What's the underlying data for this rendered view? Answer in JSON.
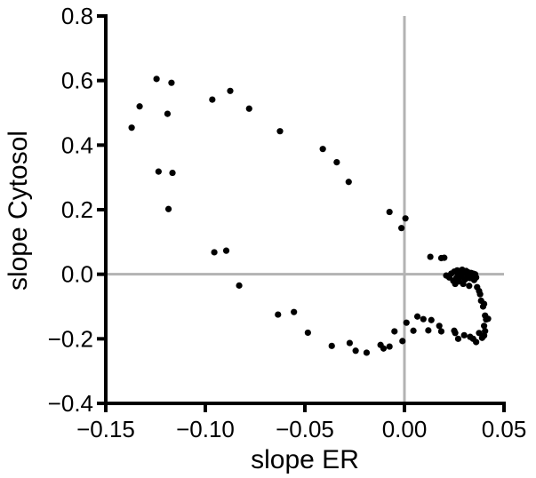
{
  "chart_data": {
    "type": "scatter",
    "title": "",
    "xlabel": "slope ER",
    "ylabel": "slope Cytosol",
    "xlim": [
      -0.15,
      0.05
    ],
    "ylim": [
      -0.4,
      0.8
    ],
    "xticks": [
      "−0.15",
      "−0.10",
      "−0.05",
      "0.00",
      "0.05"
    ],
    "xtick_values": [
      -0.15,
      -0.1,
      -0.05,
      0.0,
      0.05
    ],
    "yticks": [
      "−0.4",
      "−0.2",
      "0.0",
      "0.2",
      "0.4",
      "0.6",
      "0.8"
    ],
    "ytick_values": [
      -0.4,
      -0.2,
      0.0,
      0.2,
      0.4,
      0.6,
      0.8
    ],
    "reference_lines": {
      "x": 0.0,
      "y": 0.0,
      "color": "#b3b3b3"
    },
    "grid": false,
    "point_color": "#000000",
    "series": [
      {
        "points": [
          [
            -0.1245,
            0.605
          ],
          [
            -0.117,
            0.593
          ],
          [
            -0.133,
            0.52
          ],
          [
            -0.119,
            0.497
          ],
          [
            -0.137,
            0.454
          ],
          [
            -0.1235,
            0.318
          ],
          [
            -0.1165,
            0.314
          ],
          [
            -0.1185,
            0.202
          ],
          [
            -0.0965,
            0.541
          ],
          [
            -0.0875,
            0.568
          ],
          [
            -0.078,
            0.513
          ],
          [
            -0.0625,
            0.443
          ],
          [
            -0.041,
            0.388
          ],
          [
            -0.034,
            0.347
          ],
          [
            -0.028,
            0.286
          ],
          [
            -0.0075,
            0.193
          ],
          [
            -0.0015,
            0.143
          ],
          [
            0.0005,
            0.173
          ],
          [
            -0.0955,
            0.068
          ],
          [
            -0.0895,
            0.073
          ],
          [
            -0.083,
            -0.035
          ],
          [
            -0.0635,
            -0.125
          ],
          [
            -0.0555,
            -0.117
          ],
          [
            -0.0485,
            -0.181
          ],
          [
            -0.0365,
            -0.222
          ],
          [
            -0.0275,
            -0.213
          ],
          [
            -0.0245,
            -0.237
          ],
          [
            -0.019,
            -0.243
          ],
          [
            -0.012,
            -0.219
          ],
          [
            -0.0105,
            -0.23
          ],
          [
            -0.0075,
            -0.224
          ],
          [
            -0.005,
            -0.177
          ],
          [
            -0.001,
            -0.207
          ],
          [
            0.001,
            -0.15
          ],
          [
            0.0045,
            -0.175
          ],
          [
            0.0065,
            -0.131
          ],
          [
            0.0095,
            -0.139
          ],
          [
            0.012,
            -0.174
          ],
          [
            0.0135,
            -0.142
          ],
          [
            0.0175,
            -0.16
          ],
          [
            0.0185,
            -0.177
          ],
          [
            0.013,
            0.054
          ],
          [
            0.0185,
            0.05
          ],
          [
            0.02,
            0.051
          ],
          [
            0.021,
            -0.004
          ],
          [
            0.0225,
            -0.01
          ],
          [
            0.0235,
            0.002
          ],
          [
            0.0245,
            -0.02
          ],
          [
            0.025,
            0.008
          ],
          [
            0.0255,
            -0.03
          ],
          [
            0.026,
            -0.012
          ],
          [
            0.0265,
            0.012
          ],
          [
            0.027,
            -0.002
          ],
          [
            0.0275,
            -0.022
          ],
          [
            0.028,
            0.01
          ],
          [
            0.0285,
            -0.008
          ],
          [
            0.029,
            0.014
          ],
          [
            0.0295,
            -0.03
          ],
          [
            0.03,
            0.004
          ],
          [
            0.0305,
            -0.016
          ],
          [
            0.031,
            0.01
          ],
          [
            0.0315,
            -0.004
          ],
          [
            0.032,
            0.006
          ],
          [
            0.0325,
            -0.036
          ],
          [
            0.033,
            -0.012
          ],
          [
            0.0335,
            0.004
          ],
          [
            0.034,
            -0.006
          ],
          [
            0.0345,
            0.002
          ],
          [
            0.035,
            -0.018
          ],
          [
            0.0355,
            0.0
          ],
          [
            0.036,
            -0.01
          ],
          [
            0.0365,
            -0.04
          ],
          [
            0.0375,
            -0.052
          ],
          [
            0.038,
            -0.062
          ],
          [
            0.0385,
            -0.082
          ],
          [
            0.0395,
            -0.1
          ],
          [
            0.04,
            -0.092
          ],
          [
            0.0405,
            -0.128
          ],
          [
            0.041,
            -0.14
          ],
          [
            0.04,
            -0.16
          ],
          [
            0.042,
            -0.138
          ],
          [
            0.0405,
            -0.176
          ],
          [
            0.04,
            -0.19
          ],
          [
            0.039,
            -0.197
          ],
          [
            0.0375,
            -0.182
          ],
          [
            0.036,
            -0.21
          ],
          [
            0.0345,
            -0.2
          ],
          [
            0.033,
            -0.194
          ],
          [
            0.03,
            -0.189
          ],
          [
            0.027,
            -0.2
          ],
          [
            0.0255,
            -0.182
          ],
          [
            0.025,
            -0.175
          ]
        ]
      }
    ]
  }
}
